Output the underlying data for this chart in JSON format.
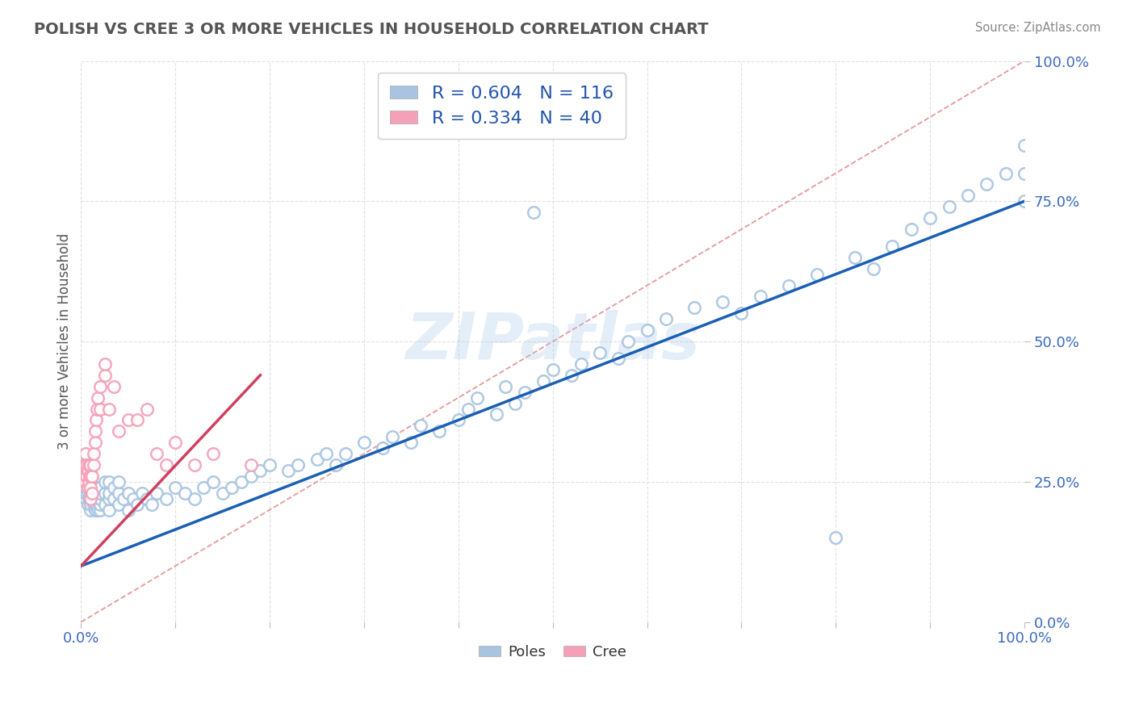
{
  "title": "POLISH VS CREE 3 OR MORE VEHICLES IN HOUSEHOLD CORRELATION CHART",
  "source": "Source: ZipAtlas.com",
  "ylabel": "3 or more Vehicles in Household",
  "xlim": [
    0,
    1
  ],
  "ylim": [
    0,
    1
  ],
  "ytick_labels": [
    "0.0%",
    "25.0%",
    "50.0%",
    "75.0%",
    "100.0%"
  ],
  "ytick_values": [
    0.0,
    0.25,
    0.5,
    0.75,
    1.0
  ],
  "watermark": "ZIPatlas",
  "legend_blue_label": "R = 0.604   N = 116",
  "legend_pink_label": "R = 0.334   N = 40",
  "poles_color": "#a8c4e0",
  "cree_color": "#f4a0b8",
  "poles_line_color": "#1a5fb4",
  "cree_line_color": "#d04060",
  "ref_line_color": "#e08080",
  "poles_line": [
    0.0,
    1.0,
    0.1,
    0.75
  ],
  "cree_line": [
    0.0,
    0.19,
    0.1,
    0.44
  ],
  "background_color": "#ffffff",
  "grid_color": "#dddddd",
  "title_color": "#555555",
  "source_color": "#888888",
  "poles_x": [
    0.005,
    0.005,
    0.005,
    0.005,
    0.005,
    0.007,
    0.007,
    0.007,
    0.008,
    0.008,
    0.01,
    0.01,
    0.01,
    0.01,
    0.01,
    0.01,
    0.01,
    0.01,
    0.012,
    0.012,
    0.013,
    0.013,
    0.015,
    0.015,
    0.015,
    0.016,
    0.016,
    0.017,
    0.018,
    0.018,
    0.02,
    0.02,
    0.02,
    0.02,
    0.02,
    0.025,
    0.025,
    0.025,
    0.03,
    0.03,
    0.03,
    0.03,
    0.035,
    0.035,
    0.04,
    0.04,
    0.04,
    0.045,
    0.05,
    0.05,
    0.055,
    0.06,
    0.065,
    0.07,
    0.075,
    0.08,
    0.09,
    0.1,
    0.11,
    0.12,
    0.13,
    0.14,
    0.15,
    0.16,
    0.17,
    0.18,
    0.19,
    0.2,
    0.22,
    0.23,
    0.25,
    0.26,
    0.27,
    0.28,
    0.3,
    0.32,
    0.33,
    0.35,
    0.36,
    0.38,
    0.4,
    0.41,
    0.42,
    0.44,
    0.45,
    0.46,
    0.47,
    0.48,
    0.49,
    0.5,
    0.52,
    0.53,
    0.55,
    0.57,
    0.58,
    0.6,
    0.62,
    0.65,
    0.68,
    0.7,
    0.72,
    0.75,
    0.78,
    0.8,
    0.82,
    0.84,
    0.86,
    0.88,
    0.9,
    0.92,
    0.94,
    0.96,
    0.98,
    1.0,
    1.0,
    1.0
  ],
  "poles_y": [
    0.22,
    0.23,
    0.24,
    0.25,
    0.26,
    0.21,
    0.23,
    0.25,
    0.22,
    0.24,
    0.2,
    0.21,
    0.22,
    0.23,
    0.24,
    0.25,
    0.26,
    0.27,
    0.22,
    0.24,
    0.21,
    0.23,
    0.2,
    0.22,
    0.24,
    0.21,
    0.23,
    0.22,
    0.2,
    0.23,
    0.2,
    0.21,
    0.22,
    0.23,
    0.24,
    0.21,
    0.23,
    0.25,
    0.2,
    0.22,
    0.23,
    0.25,
    0.22,
    0.24,
    0.21,
    0.23,
    0.25,
    0.22,
    0.2,
    0.23,
    0.22,
    0.21,
    0.23,
    0.22,
    0.21,
    0.23,
    0.22,
    0.24,
    0.23,
    0.22,
    0.24,
    0.25,
    0.23,
    0.24,
    0.25,
    0.26,
    0.27,
    0.28,
    0.27,
    0.28,
    0.29,
    0.3,
    0.28,
    0.3,
    0.32,
    0.31,
    0.33,
    0.32,
    0.35,
    0.34,
    0.36,
    0.38,
    0.4,
    0.37,
    0.42,
    0.39,
    0.41,
    0.73,
    0.43,
    0.45,
    0.44,
    0.46,
    0.48,
    0.47,
    0.5,
    0.52,
    0.54,
    0.56,
    0.57,
    0.55,
    0.58,
    0.6,
    0.62,
    0.15,
    0.65,
    0.63,
    0.67,
    0.7,
    0.72,
    0.74,
    0.76,
    0.78,
    0.8,
    0.75,
    0.8,
    0.85
  ],
  "cree_x": [
    0.003,
    0.004,
    0.005,
    0.005,
    0.006,
    0.006,
    0.007,
    0.007,
    0.008,
    0.008,
    0.009,
    0.01,
    0.01,
    0.01,
    0.01,
    0.012,
    0.012,
    0.013,
    0.013,
    0.015,
    0.015,
    0.016,
    0.017,
    0.018,
    0.02,
    0.02,
    0.025,
    0.025,
    0.03,
    0.035,
    0.04,
    0.05,
    0.06,
    0.07,
    0.08,
    0.09,
    0.1,
    0.12,
    0.14,
    0.18
  ],
  "cree_y": [
    0.26,
    0.28,
    0.25,
    0.3,
    0.26,
    0.28,
    0.24,
    0.27,
    0.25,
    0.28,
    0.26,
    0.22,
    0.24,
    0.26,
    0.28,
    0.23,
    0.26,
    0.28,
    0.3,
    0.32,
    0.34,
    0.36,
    0.38,
    0.4,
    0.38,
    0.42,
    0.44,
    0.46,
    0.38,
    0.42,
    0.34,
    0.36,
    0.36,
    0.38,
    0.3,
    0.28,
    0.32,
    0.28,
    0.3,
    0.28
  ]
}
